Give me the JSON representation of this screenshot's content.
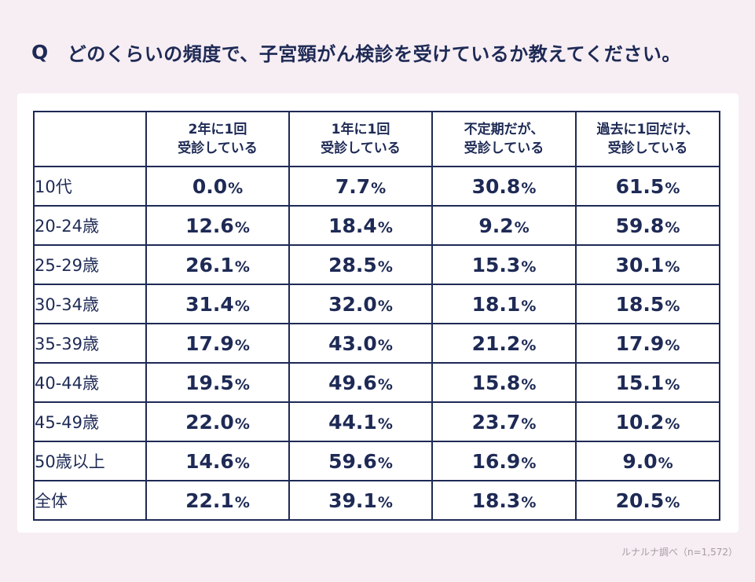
{
  "question": {
    "marker": "Q",
    "text": "どのくらいの頻度で、子宮頸がん検診を受けているか教えてください。"
  },
  "colors": {
    "background": "#f7eef4",
    "card": "#ffffff",
    "text": "#1e2a55",
    "source_text": "#a89aa3"
  },
  "chart_data": {
    "type": "table",
    "corner_label": "",
    "columns": [
      {
        "line1": "2年に1回",
        "line2": "受診している"
      },
      {
        "line1": "1年に1回",
        "line2": "受診している"
      },
      {
        "line1": "不定期だが、",
        "line2": "受診している"
      },
      {
        "line1": "過去に1回だけ、",
        "line2": "受診している"
      }
    ],
    "unit": "%",
    "rows": [
      {
        "label": "10代",
        "values": [
          "0.0",
          "7.7",
          "30.8",
          "61.5"
        ]
      },
      {
        "label": "20-24歳",
        "values": [
          "12.6",
          "18.4",
          "9.2",
          "59.8"
        ]
      },
      {
        "label": "25-29歳",
        "values": [
          "26.1",
          "28.5",
          "15.3",
          "30.1"
        ]
      },
      {
        "label": "30-34歳",
        "values": [
          "31.4",
          "32.0",
          "18.1",
          "18.5"
        ]
      },
      {
        "label": "35-39歳",
        "values": [
          "17.9",
          "43.0",
          "21.2",
          "17.9"
        ]
      },
      {
        "label": "40-44歳",
        "values": [
          "19.5",
          "49.6",
          "15.8",
          "15.1"
        ]
      },
      {
        "label": "45-49歳",
        "values": [
          "22.0",
          "44.1",
          "23.7",
          "10.2"
        ]
      },
      {
        "label": "50歳以上",
        "values": [
          "14.6",
          "59.6",
          "16.9",
          "9.0"
        ]
      },
      {
        "label": "全体",
        "values": [
          "22.1",
          "39.1",
          "18.3",
          "20.5"
        ]
      }
    ]
  },
  "source": "ルナルナ調べ（n=1,572）"
}
